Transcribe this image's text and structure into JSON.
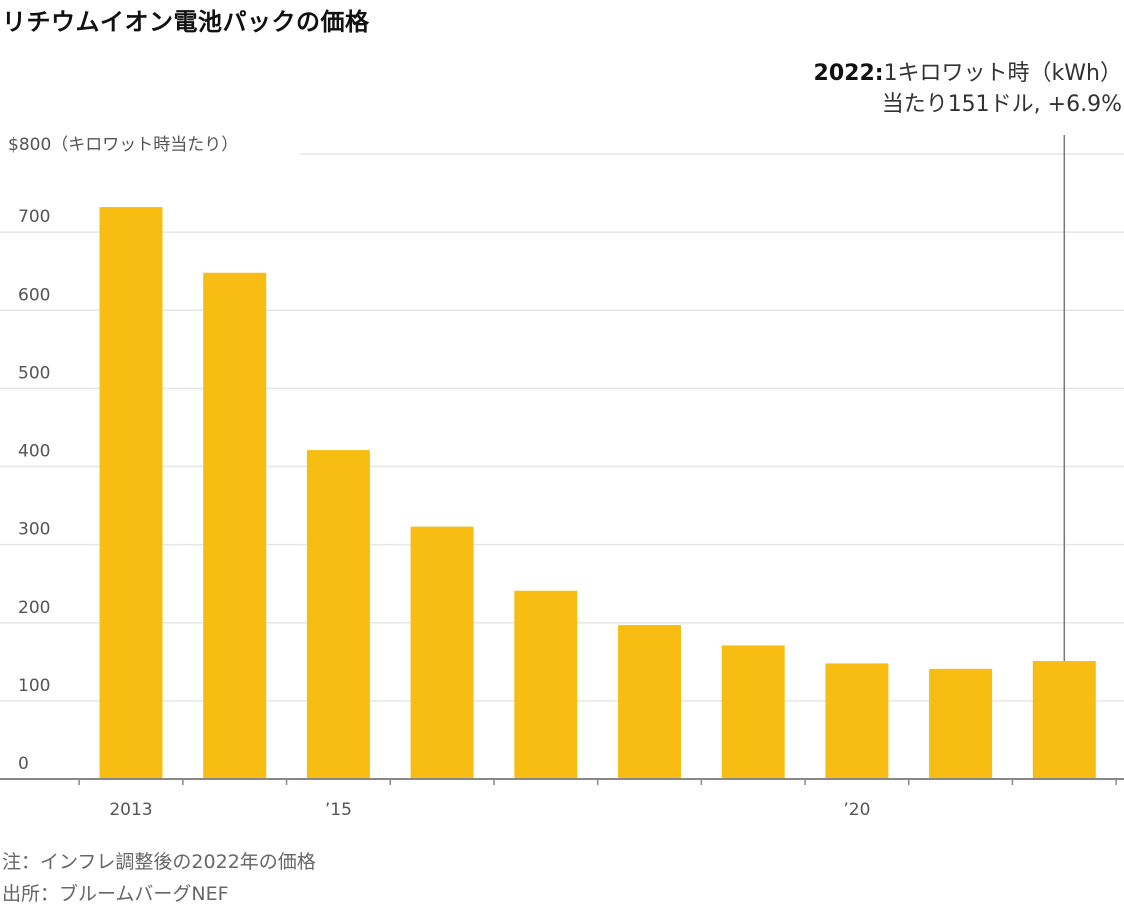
{
  "chart_data": {
    "type": "bar",
    "title": "リチウムイオン電池パックの価格",
    "ylabel": "$800（キロワット時当たり）",
    "ylim": [
      0,
      800
    ],
    "yticks": [
      {
        "value": 0,
        "label": "0"
      },
      {
        "value": 100,
        "label": "100"
      },
      {
        "value": 200,
        "label": "200"
      },
      {
        "value": 300,
        "label": "300"
      },
      {
        "value": 400,
        "label": "400"
      },
      {
        "value": 500,
        "label": "500"
      },
      {
        "value": 600,
        "label": "600"
      },
      {
        "value": 700,
        "label": "700"
      }
    ],
    "categories": [
      "2013",
      "2014",
      "2015",
      "2016",
      "2017",
      "2018",
      "2019",
      "2020",
      "2021",
      "2022"
    ],
    "xtick_labels": [
      {
        "category": "2013",
        "label": "2013"
      },
      {
        "category": "2015",
        "label": "’15"
      },
      {
        "category": "2020",
        "label": "’20"
      }
    ],
    "values": [
      732,
      648,
      421,
      323,
      241,
      197,
      171,
      148,
      141,
      151
    ],
    "bar_color": "#f8bd13",
    "grid": true,
    "annotation": {
      "category": "2022",
      "year": "2022:",
      "line1": "1キロワット時（kWh）",
      "line2": "当たり151ドル, +6.9%"
    }
  },
  "footnotes": {
    "note": "注：インフレ調整後の2022年の価格",
    "source": "出所：ブルームバーグNEF"
  },
  "colors": {
    "bar": "#f8bd13",
    "gridline": "#e6e6e6",
    "axis": "#888888",
    "annotation_line": "#777777"
  }
}
